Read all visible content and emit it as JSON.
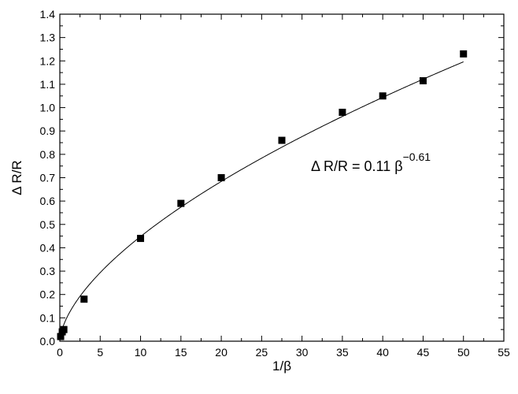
{
  "chart_data": {
    "type": "scatter",
    "xlabel": "1/β",
    "ylabel": "Δ R/R",
    "xlim": [
      0,
      55
    ],
    "ylim": [
      0,
      1.4
    ],
    "xticks": [
      "0",
      "5",
      "10",
      "15",
      "20",
      "25",
      "30",
      "35",
      "40",
      "45",
      "50",
      "55"
    ],
    "yticks": [
      "0.0",
      "0.1",
      "0.2",
      "0.3",
      "0.4",
      "0.5",
      "0.6",
      "0.7",
      "0.8",
      "0.9",
      "1.0",
      "1.1",
      "1.2",
      "1.3",
      "1.4"
    ],
    "grid": false,
    "legend": "none",
    "series": [
      {
        "marker": "square",
        "color": "#000000",
        "x": [
          0.1,
          0.3,
          0.5,
          3,
          10,
          15,
          20,
          27.5,
          35,
          40,
          45,
          50
        ],
        "y": [
          0.02,
          0.04,
          0.05,
          0.18,
          0.44,
          0.59,
          0.7,
          0.86,
          0.98,
          1.05,
          1.115,
          1.23
        ]
      }
    ],
    "fit": {
      "style": "line",
      "color": "#000000",
      "equation_lhs": "Δ R/R = 0.11 β",
      "equation_exponent": "−0.61",
      "coefficient": 0.11,
      "exponent": 0.61
    }
  }
}
